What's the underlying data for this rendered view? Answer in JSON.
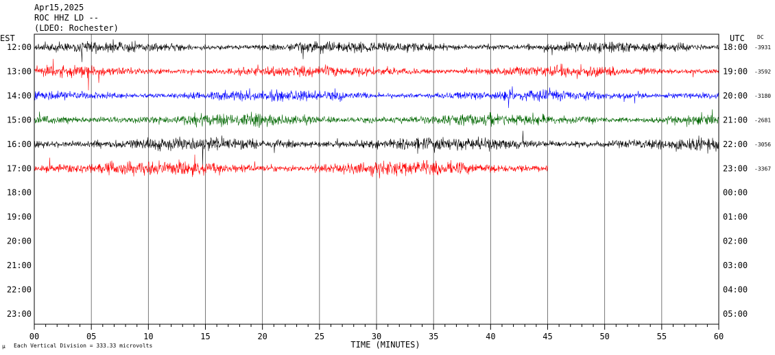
{
  "header": {
    "date": "Apr15,2025",
    "station": "ROC HHZ LD --",
    "location": "(LDEO: Rochester)"
  },
  "axis": {
    "left_title": "EST",
    "right_title": "UTC",
    "dc_title": "DC",
    "x_title": "TIME (MINUTES)"
  },
  "footer": {
    "scale_text": "Each Vertical Division =  333.33 microvolts"
  },
  "colors": {
    "trace_cycle": [
      "#000000",
      "#ff0000",
      "#0000ff",
      "#006600"
    ],
    "grid": "#000000"
  },
  "chart_data": {
    "type": "line",
    "xlabel": "TIME (MINUTES)",
    "xlim": [
      0,
      60
    ],
    "x_ticks": [
      "00",
      "05",
      "10",
      "15",
      "20",
      "25",
      "30",
      "35",
      "40",
      "45",
      "50",
      "55",
      "60"
    ],
    "rows": [
      {
        "est": "12:00",
        "utc": "18:00",
        "dc": "-3931",
        "amplitude": 1.0,
        "end_minute": 60
      },
      {
        "est": "13:00",
        "utc": "19:00",
        "dc": "-3592",
        "amplitude": 1.0,
        "end_minute": 60
      },
      {
        "est": "14:00",
        "utc": "20:00",
        "dc": "-3180",
        "amplitude": 1.0,
        "end_minute": 60
      },
      {
        "est": "15:00",
        "utc": "21:00",
        "dc": "-2681",
        "amplitude": 1.1,
        "end_minute": 60
      },
      {
        "est": "16:00",
        "utc": "22:00",
        "dc": "-3056",
        "amplitude": 1.2,
        "end_minute": 60
      },
      {
        "est": "17:00",
        "utc": "23:00",
        "dc": "-3367",
        "amplitude": 1.3,
        "end_minute": 45
      },
      {
        "est": "18:00",
        "utc": "00:00",
        "dc": "",
        "amplitude": 0,
        "end_minute": 0
      },
      {
        "est": "19:00",
        "utc": "01:00",
        "dc": "",
        "amplitude": 0,
        "end_minute": 0
      },
      {
        "est": "20:00",
        "utc": "02:00",
        "dc": "",
        "amplitude": 0,
        "end_minute": 0
      },
      {
        "est": "21:00",
        "utc": "03:00",
        "dc": "",
        "amplitude": 0,
        "end_minute": 0
      },
      {
        "est": "22:00",
        "utc": "04:00",
        "dc": "",
        "amplitude": 0,
        "end_minute": 0
      },
      {
        "est": "23:00",
        "utc": "05:00",
        "dc": "",
        "amplitude": 0,
        "end_minute": 0
      }
    ]
  }
}
